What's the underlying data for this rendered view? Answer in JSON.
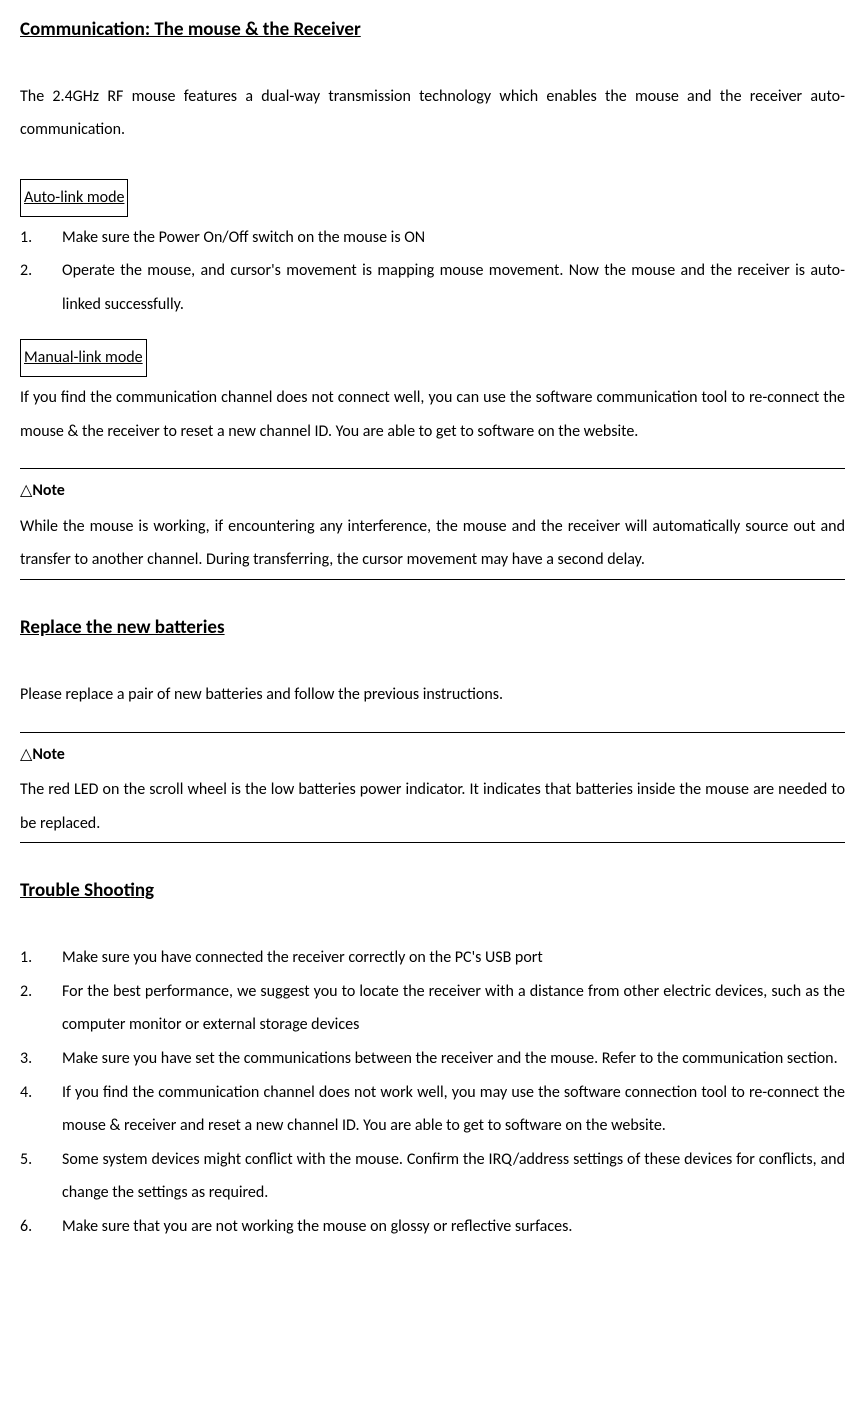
{
  "section1": {
    "title": "Communication: The mouse & the Receiver",
    "intro": "The 2.4GHz RF mouse features a dual-way transmission technology which enables the mouse and the receiver auto-communication.",
    "autoLinkLabel": "Auto-link mode",
    "autoLinkItems": [
      "Make sure the Power On/Off switch on the mouse is ON",
      "Operate the mouse, and cursor's movement is mapping mouse movement. Now the mouse and the receiver is auto-linked successfully."
    ],
    "manualLinkLabel": "Manual-link mode",
    "manualLinkText": "If you find the communication channel does not connect well, you can use the software communication tool to re-connect the mouse & the receiver to reset a new channel ID. You are able to get to software on the website.",
    "note1LabelSymbol": "△",
    "note1Label": "Note",
    "note1Text": "While the mouse is working, if encountering any interference, the mouse and the receiver will automatically source out and transfer to another channel. During transferring, the cursor movement may have a second delay."
  },
  "section2": {
    "title": "Replace the new batteries",
    "intro": "Please replace a pair of new batteries and follow the previous instructions.",
    "note2LabelSymbol": "△",
    "note2Label": "Note",
    "note2Text": "The red LED on the scroll wheel is the low batteries power indicator. It indicates that batteries inside the mouse are needed to be replaced."
  },
  "section3": {
    "title": "Trouble Shooting",
    "items": [
      "Make sure you have connected the receiver correctly on the PC's USB port",
      "For the best performance, we suggest you to locate the receiver with a distance from other electric devices, such as the computer monitor or external storage devices",
      "Make sure you have set the communications between the receiver and the mouse. Refer to the communication section.",
      "If you find the communication channel does not work well, you may use the software connection tool to re-connect the mouse & receiver and reset a new channel ID. You are able to get to software on the website.",
      "Some system devices might conflict with the mouse. Confirm the IRQ/address settings of these devices for conflicts, and change the settings as required.",
      "Make sure that you are not working the mouse on glossy or reflective surfaces."
    ]
  }
}
